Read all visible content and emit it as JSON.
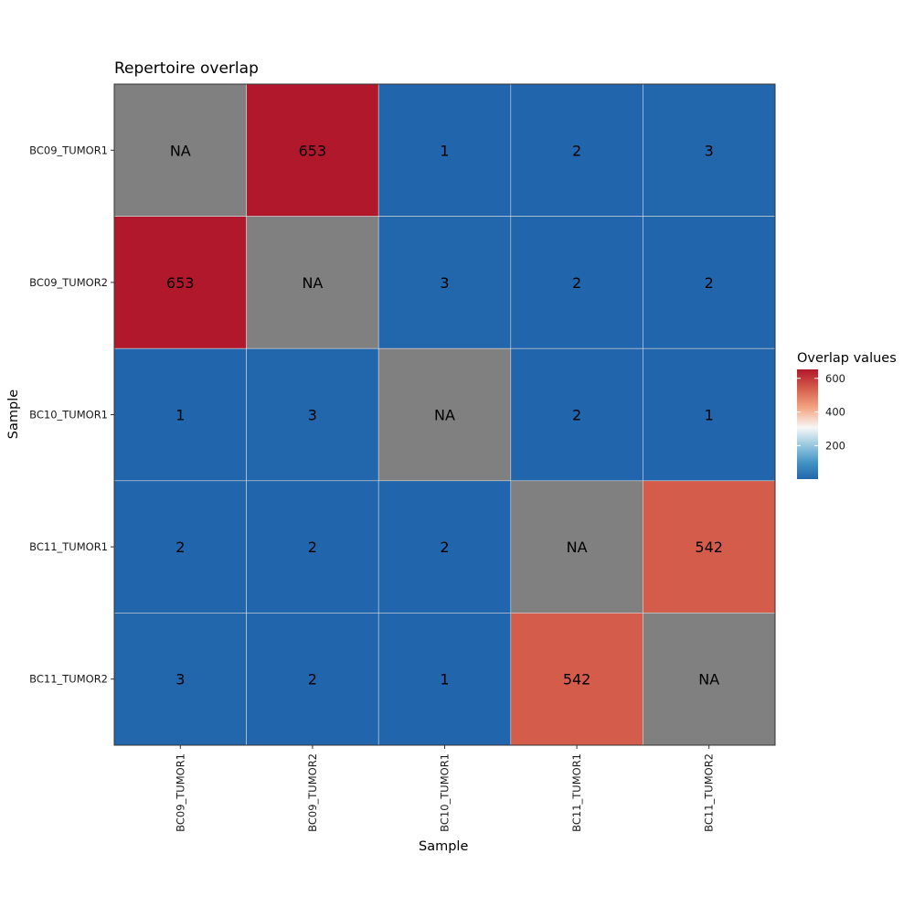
{
  "chart_data": {
    "type": "heatmap",
    "title": "Repertoire overlap",
    "xlabel": "Sample",
    "ylabel": "Sample",
    "x_categories": [
      "BC09_TUMOR1",
      "BC09_TUMOR2",
      "BC10_TUMOR1",
      "BC11_TUMOR1",
      "BC11_TUMOR2"
    ],
    "y_categories": [
      "BC09_TUMOR1",
      "BC09_TUMOR2",
      "BC10_TUMOR1",
      "BC11_TUMOR1",
      "BC11_TUMOR2"
    ],
    "values": [
      [
        null,
        653,
        1,
        2,
        3
      ],
      [
        653,
        null,
        3,
        2,
        2
      ],
      [
        1,
        3,
        null,
        2,
        1
      ],
      [
        2,
        2,
        2,
        null,
        542
      ],
      [
        3,
        2,
        1,
        542,
        null
      ]
    ],
    "cell_labels": [
      [
        "NA",
        "653",
        "1",
        "2",
        "3"
      ],
      [
        "653",
        "NA",
        "3",
        "2",
        "2"
      ],
      [
        "1",
        "3",
        "NA",
        "2",
        "1"
      ],
      [
        "2",
        "2",
        "2",
        "NA",
        "542"
      ],
      [
        "3",
        "2",
        "1",
        "542",
        "NA"
      ]
    ],
    "na_color": "#808080",
    "legend": {
      "title": "Overlap values",
      "ticks": [
        200,
        400,
        600
      ],
      "tick_labels": [
        "200",
        "400",
        "600"
      ],
      "range": [
        1,
        653
      ],
      "placement": "right",
      "colors": {
        "low": "#2166ac",
        "mid": "#f7f7f7",
        "high": "#b2182b"
      }
    },
    "grid": true
  }
}
